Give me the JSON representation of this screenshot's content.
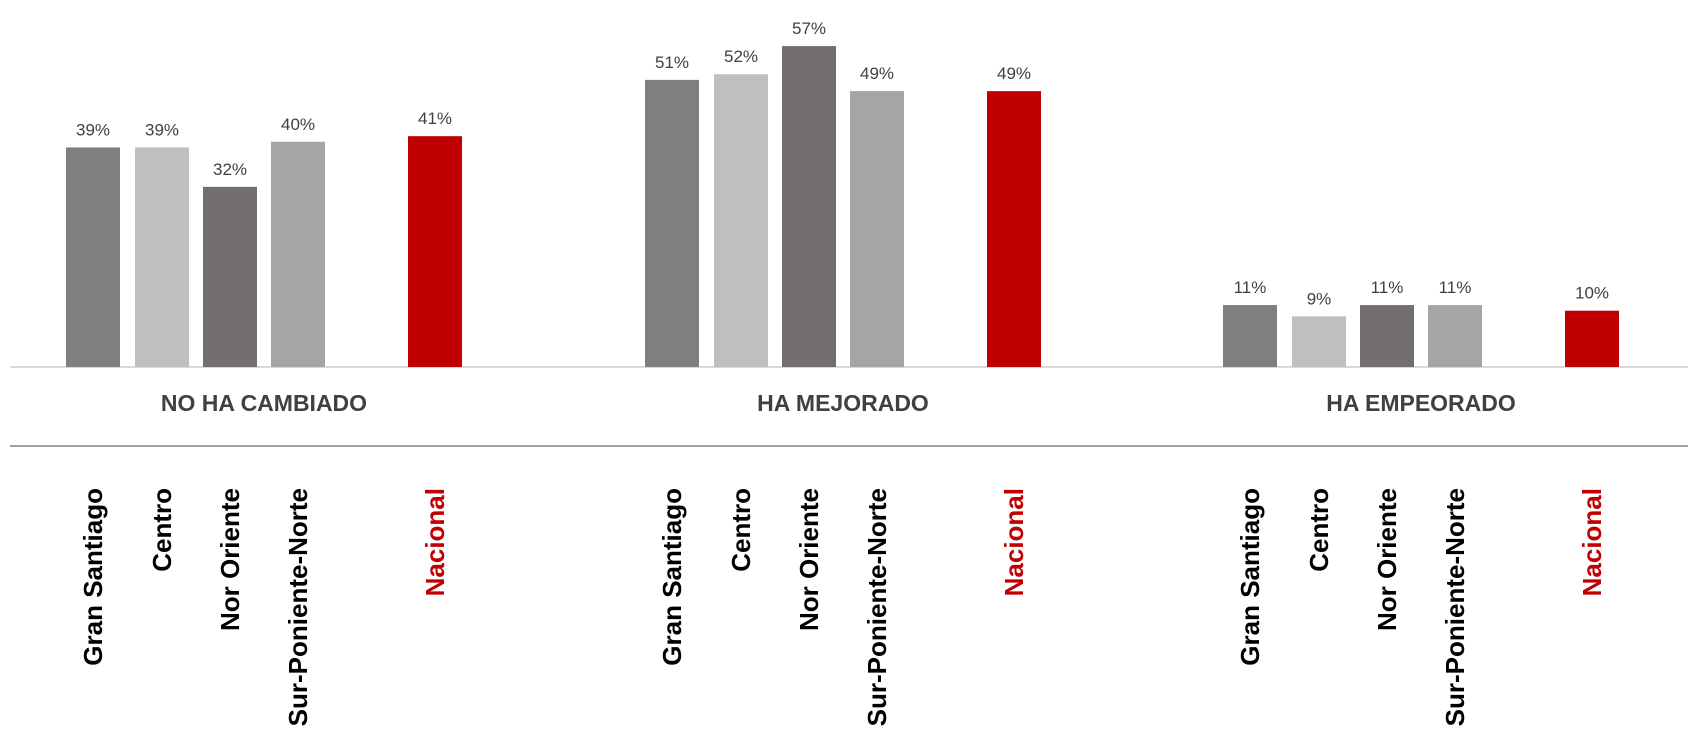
{
  "chart_data": {
    "type": "bar",
    "groups": [
      "NO HA CAMBIADO",
      "HA MEJORADO",
      "HA EMPEORADO"
    ],
    "categories": [
      "Gran Santiago",
      "Centro",
      "Nor Oriente",
      "Sur-Poniente-Norte",
      "Nacional"
    ],
    "values": [
      [
        39,
        39,
        32,
        40,
        41
      ],
      [
        51,
        52,
        57,
        49,
        49
      ],
      [
        11,
        9,
        11,
        11,
        10
      ]
    ],
    "value_suffix": "%",
    "colors": [
      "#7f7f7f",
      "#bfbfbf",
      "#736f6f",
      "#a5a5a5",
      "#c00000"
    ],
    "category_label_colors": [
      "#000000",
      "#000000",
      "#000000",
      "#000000",
      "#c00000"
    ],
    "group_label_color": "#404040",
    "value_label_color": "#404040",
    "ylim": [
      0,
      60
    ],
    "grid": false,
    "legend": "none"
  }
}
